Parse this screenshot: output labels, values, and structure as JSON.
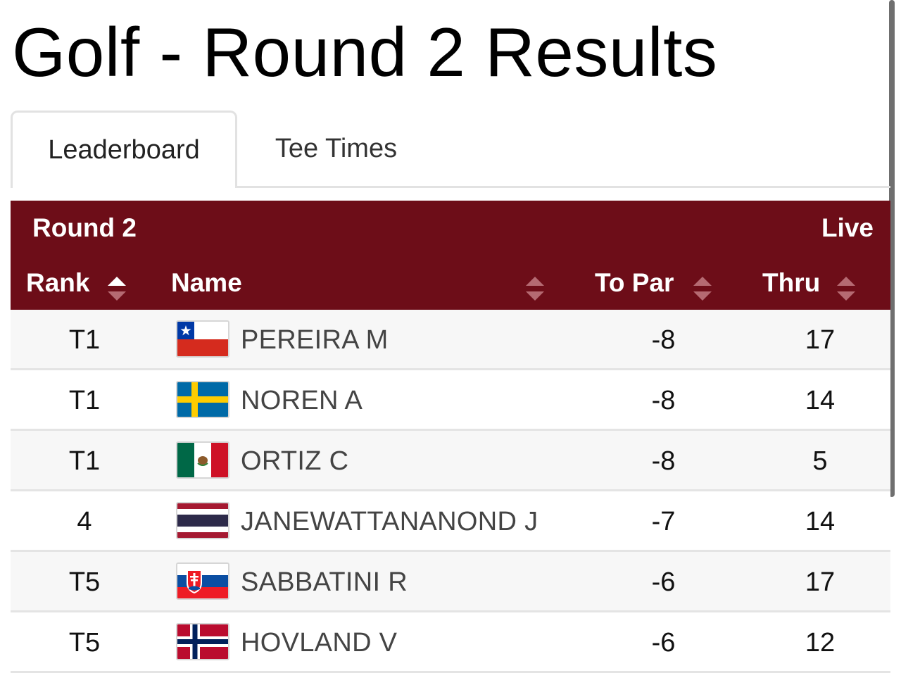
{
  "page": {
    "title": "Golf - Round 2 Results"
  },
  "tabs": [
    {
      "label": "Leaderboard",
      "active": true
    },
    {
      "label": "Tee Times",
      "active": false
    }
  ],
  "board": {
    "round_label": "Round 2",
    "status_label": "Live",
    "columns": {
      "rank": "Rank",
      "name": "Name",
      "to_par": "To Par",
      "thru": "Thru"
    },
    "sort": {
      "column": "rank",
      "direction": "ascending"
    }
  },
  "colors": {
    "header_bg": "#6d0d18",
    "header_text": "#ffffff",
    "row_alt_bg": "#f7f7f7"
  },
  "players": [
    {
      "rank": "T1",
      "flag_icon": "chile-flag-icon",
      "name": "PEREIRA M",
      "to_par": "-8",
      "thru": "17"
    },
    {
      "rank": "T1",
      "flag_icon": "sweden-flag-icon",
      "name": "NOREN A",
      "to_par": "-8",
      "thru": "14"
    },
    {
      "rank": "T1",
      "flag_icon": "mexico-flag-icon",
      "name": "ORTIZ C",
      "to_par": "-8",
      "thru": "5"
    },
    {
      "rank": "4",
      "flag_icon": "thailand-flag-icon",
      "name": "JANEWATTANANOND J",
      "to_par": "-7",
      "thru": "14"
    },
    {
      "rank": "T5",
      "flag_icon": "slovakia-flag-icon",
      "name": "SABBATINI R",
      "to_par": "-6",
      "thru": "17"
    },
    {
      "rank": "T5",
      "flag_icon": "norway-flag-icon",
      "name": "HOVLAND V",
      "to_par": "-6",
      "thru": "12"
    }
  ]
}
